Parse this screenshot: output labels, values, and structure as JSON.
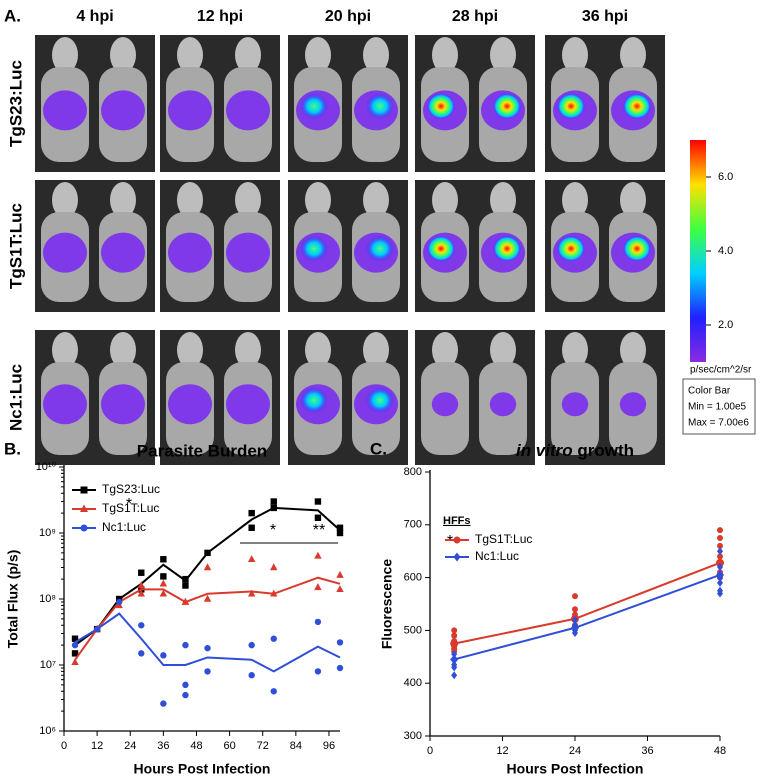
{
  "panel_a": {
    "letter": "A.",
    "columns": [
      "4 hpi",
      "12 hpi",
      "20 hpi",
      "28 hpi",
      "36 hpi"
    ],
    "rows": [
      "TgS23:Luc",
      "TgS1T:Luc",
      "Nc1:Luc"
    ],
    "colorbar": {
      "lim": [
        1,
        7
      ],
      "ticks": [
        {
          "value": 2,
          "label": "2.0"
        },
        {
          "value": 4,
          "label": "4.0"
        },
        {
          "value": 6,
          "label": "6.0"
        }
      ],
      "unit": "p/sec/cm^2/sr",
      "box": [
        "Color Bar",
        "Min = 1.00e5",
        "Max = 7.00e6"
      ]
    }
  },
  "chart_data": [
    {
      "type": "line",
      "letter": "B.",
      "title": "Parasite Burden",
      "xlabel": "Hours Post Infection",
      "ylabel": "Total Flux (p/s)",
      "log_y": true,
      "xlim": [
        0,
        100
      ],
      "xticks": [
        0,
        12,
        24,
        36,
        48,
        60,
        72,
        84,
        96
      ],
      "ylim": [
        1000000,
        10000000000
      ],
      "yticks": [
        {
          "value": 1000000,
          "label": "10⁶"
        },
        {
          "value": 10000000,
          "label": "10⁷"
        },
        {
          "value": 100000000,
          "label": "10⁸"
        },
        {
          "value": 1000000000,
          "label": "10⁹"
        },
        {
          "value": 10000000000,
          "label": "10¹⁰"
        }
      ],
      "annotations": [
        "*",
        "*",
        "**"
      ],
      "series": [
        {
          "name": "TgS23:Luc",
          "color": "#000000",
          "marker": "square",
          "x": [
            4,
            12,
            20,
            28,
            36,
            44,
            52,
            68,
            76,
            92,
            100
          ],
          "values": [
            20000000,
            35000000,
            100000000,
            170000000,
            330000000,
            190000000,
            500000000,
            1600000000,
            2400000000,
            2200000000,
            1100000000
          ],
          "points": {
            "x": [
              4,
              4,
              12,
              20,
              28,
              28,
              36,
              36,
              44,
              44,
              52,
              68,
              68,
              76,
              76,
              92,
              92,
              100,
              100
            ],
            "values": [
              15000000,
              25000000,
              35000000,
              100000000,
              250000000,
              140000000,
              400000000,
              220000000,
              200000000,
              160000000,
              500000000,
              2000000000,
              1200000000,
              3000000000,
              2400000000,
              3000000000,
              1700000000,
              1200000000,
              1000000000
            ]
          }
        },
        {
          "name": "TgS1T:Luc",
          "color": "#d93a2b",
          "marker": "triangle",
          "x": [
            4,
            12,
            20,
            28,
            36,
            44,
            52,
            68,
            76,
            92,
            100
          ],
          "values": [
            12000000,
            35000000,
            90000000,
            140000000,
            140000000,
            90000000,
            120000000,
            130000000,
            120000000,
            210000000,
            170000000
          ],
          "points": {
            "x": [
              4,
              12,
              20,
              28,
              28,
              36,
              36,
              44,
              44,
              52,
              52,
              68,
              68,
              76,
              76,
              92,
              92,
              100,
              100
            ],
            "values": [
              11000000,
              35000000,
              80000000,
              160000000,
              120000000,
              170000000,
              120000000,
              90000000,
              90000000,
              300000000,
              100000000,
              400000000,
              120000000,
              300000000,
              120000000,
              450000000,
              150000000,
              230000000,
              140000000
            ]
          }
        },
        {
          "name": "Nc1:Luc",
          "color": "#2f4fd8",
          "marker": "circle",
          "x": [
            4,
            12,
            20,
            28,
            36,
            44,
            52,
            68,
            76,
            92,
            100
          ],
          "values": [
            22000000,
            35000000,
            60000000,
            25000000,
            10000000,
            10000000,
            13000000,
            12000000,
            8000000,
            19000000,
            13000000
          ],
          "points": {
            "x": [
              4,
              12,
              20,
              28,
              28,
              36,
              36,
              44,
              44,
              44,
              52,
              52,
              68,
              68,
              76,
              76,
              92,
              92,
              100,
              100
            ],
            "values": [
              20000000,
              35000000,
              90000000,
              40000000,
              15000000,
              14000000,
              2600000,
              20000000,
              5000000,
              3500000,
              18000000,
              8000000,
              20000000,
              7000000,
              25000000,
              4000000,
              45000000,
              8000000,
              22000000,
              9000000
            ]
          }
        }
      ]
    },
    {
      "type": "line",
      "letter": "C.",
      "title_parts": [
        "in vitro",
        "growth"
      ],
      "xlabel": "Hours Post Infection",
      "ylabel": "Fluorescence",
      "legend_title": "HFFs",
      "log_y": false,
      "xlim": [
        0,
        48
      ],
      "xticks": [
        0,
        12,
        24,
        36,
        48
      ],
      "ylim": [
        300,
        800
      ],
      "yticks": [
        300,
        400,
        500,
        600,
        700,
        800
      ],
      "annotations": [
        "*"
      ],
      "series": [
        {
          "name": "TgS1T:Luc",
          "color": "#d93a2b",
          "marker": "circle",
          "x": [
            4,
            24,
            48
          ],
          "values": [
            475,
            522,
            628
          ],
          "points": {
            "x": [
              4,
              4,
              4,
              4,
              4,
              4,
              24,
              24,
              24,
              24,
              24,
              24,
              48,
              48,
              48,
              48,
              48,
              48,
              48
            ],
            "values": [
              500,
              490,
              480,
              470,
              465,
              460,
              565,
              540,
              530,
              520,
              510,
              505,
              690,
              675,
              660,
              640,
              625,
              610,
              600
            ]
          }
        },
        {
          "name": "Nc1:Luc",
          "color": "#2f4fd8",
          "marker": "diamond",
          "x": [
            4,
            24,
            48
          ],
          "values": [
            445,
            505,
            605
          ],
          "points": {
            "x": [
              4,
              4,
              4,
              4,
              4,
              24,
              24,
              24,
              24,
              48,
              48,
              48,
              48,
              48,
              48
            ],
            "values": [
              455,
              445,
              435,
              430,
              415,
              520,
              510,
              500,
              495,
              650,
              620,
              600,
              590,
              575,
              570
            ]
          }
        }
      ]
    }
  ]
}
